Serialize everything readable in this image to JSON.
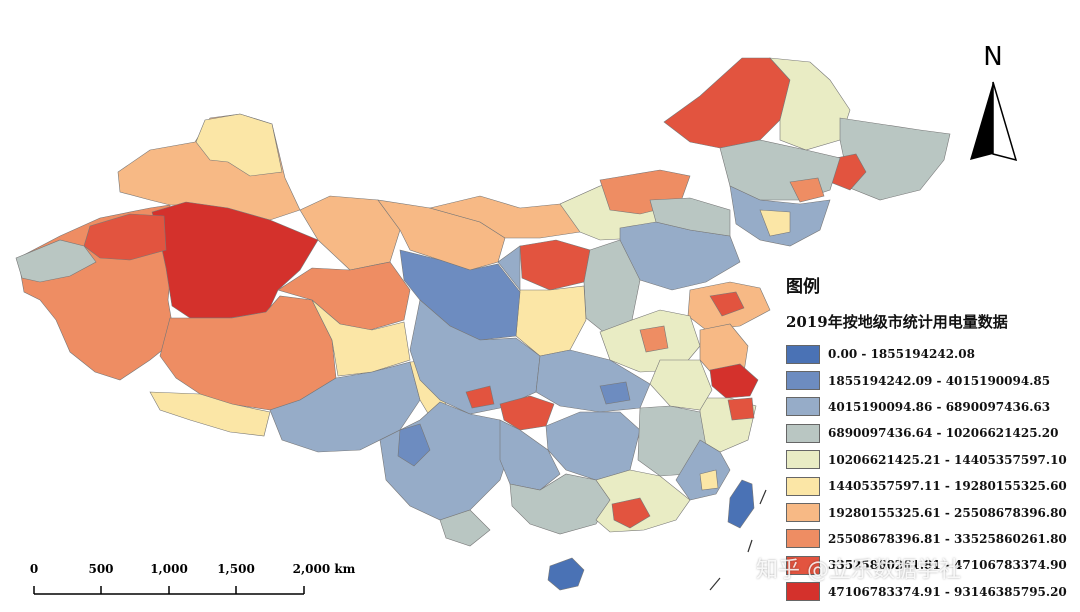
{
  "legend": {
    "title": "图例",
    "subtitle": "2019年按地级市统计用电量数据",
    "classes": [
      {
        "label": "0.00 - 1855194242.08",
        "color": "#4a72b5"
      },
      {
        "label": "1855194242.09 - 4015190094.85",
        "color": "#6d8cc0"
      },
      {
        "label": "4015190094.86 - 6890097436.63",
        "color": "#96acc8"
      },
      {
        "label": "6890097436.64 - 10206621425.20",
        "color": "#b9c6c2"
      },
      {
        "label": "10206621425.21 - 14405357597.10",
        "color": "#e9ecc4"
      },
      {
        "label": "14405357597.11 - 19280155325.60",
        "color": "#fbe6a6"
      },
      {
        "label": "19280155325.61 - 25508678396.80",
        "color": "#f7b985"
      },
      {
        "label": "25508678396.81 - 33525860261.80",
        "color": "#ee8d63"
      },
      {
        "label": "33525860261.81 - 47106783374.90",
        "color": "#e2543f"
      },
      {
        "label": "47106783374.91 - 93146385795.20",
        "color": "#d4312c"
      }
    ]
  },
  "north_arrow": {
    "label": "N"
  },
  "scale_bar": {
    "ticks": [
      "0",
      "500",
      "1,000",
      "1,500",
      "2,000 km"
    ]
  },
  "watermark": "知乎 @立乐数据学社"
}
